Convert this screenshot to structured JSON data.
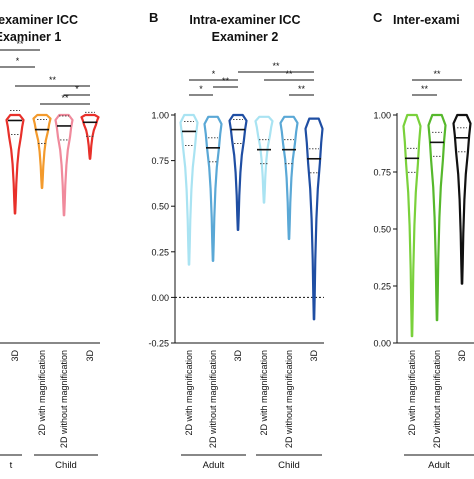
{
  "colors": {
    "adult_2d_mag_b": "#a9e3f2",
    "adult_2d_nomag_b": "#5aa8d6",
    "adult_3d_b": "#1f4ea3",
    "child_2d_mag_b": "#a9e3f2",
    "child_2d_nomag_b": "#5aa8d6",
    "child_3d_b": "#1f4ea3",
    "a_3d_adult": "#e8302a",
    "a_2d_mag_child": "#f39a2c",
    "a_2d_nomag_child": "#f08a9c",
    "a_3d_child": "#e8302a",
    "c_2d_mag": "#7ad13b",
    "c_2d_nomag": "#56b82c",
    "c_3d": "#111111"
  },
  "chart_data": [
    {
      "panel_letter": "",
      "title_lines": [
        "-examiner ICC",
        "Examiner 1"
      ],
      "type": "violin",
      "categories": [
        "3D",
        "2D with magnification",
        "2D without magnification",
        "3D"
      ],
      "groups": [
        {
          "label": "t",
          "start": 0,
          "end": 0
        },
        {
          "label": "Child",
          "start": 1,
          "end": 3
        }
      ],
      "medians": [
        0.97,
        0.92,
        0.94,
        0.96
      ],
      "mins": [
        0.46,
        0.6,
        0.45,
        0.76
      ],
      "maxs": [
        1.0,
        1.0,
        1.0,
        1.0
      ],
      "significance": [
        {
          "label": "**",
          "level": 0
        },
        {
          "label": "*",
          "level": 1
        },
        {
          "label": "**",
          "from": 1,
          "to": 3,
          "level": 2
        },
        {
          "label": "**",
          "from": 2,
          "to": 3,
          "level": 3
        },
        {
          "label": "*",
          "from": 2,
          "to": 3,
          "level": 4
        }
      ]
    },
    {
      "panel_letter": "B",
      "title_lines": [
        "Intra-examiner ICC",
        "Examiner 2"
      ],
      "type": "violin",
      "categories": [
        "2D with magnification",
        "2D without magnification",
        "3D",
        "2D with magnification",
        "2D without magnification",
        "3D"
      ],
      "groups": [
        {
          "label": "Adult",
          "start": 0,
          "end": 2
        },
        {
          "label": "Child",
          "start": 3,
          "end": 5
        }
      ],
      "ylim": [
        -0.25,
        1.0
      ],
      "yticks": [
        "1.00",
        "0.75",
        "0.50",
        "0.25",
        "0.00",
        "-0.25"
      ],
      "medians": [
        0.91,
        0.82,
        0.92,
        0.81,
        0.81,
        0.76
      ],
      "mins": [
        0.18,
        0.2,
        0.37,
        0.52,
        0.32,
        -0.12
      ],
      "maxs": [
        1.0,
        0.99,
        1.0,
        0.99,
        0.99,
        0.98
      ],
      "significance": [
        {
          "label": "*",
          "from": 0,
          "to": 2,
          "level": 3
        },
        {
          "label": "*",
          "from": 0,
          "to": 1,
          "level": 1
        },
        {
          "label": "**",
          "from": 1,
          "to": 2,
          "level": 2
        },
        {
          "label": "**",
          "from": 2,
          "to": 5,
          "level": 4
        },
        {
          "label": "**",
          "from": 3,
          "to": 5,
          "level": 3
        },
        {
          "label": "**",
          "from": 4,
          "to": 5,
          "level": 1
        }
      ]
    },
    {
      "panel_letter": "C",
      "title_lines": [
        "Inter-exami"
      ],
      "type": "violin",
      "categories": [
        "2D with magnification",
        "2D without magnification",
        "3D"
      ],
      "groups": [
        {
          "label": "Adult",
          "start": 0,
          "end": 2
        }
      ],
      "ylim": [
        0.0,
        1.0
      ],
      "yticks": [
        "1.00",
        "0.75",
        "0.50",
        "0.25",
        "0.00"
      ],
      "medians": [
        0.81,
        0.88,
        0.9
      ],
      "mins": [
        0.03,
        0.1,
        0.26
      ],
      "maxs": [
        1.0,
        1.0,
        1.0
      ],
      "significance": [
        {
          "label": "**",
          "from": 0,
          "to": 2,
          "level": 3
        },
        {
          "label": "**",
          "from": 0,
          "to": 1,
          "level": 1
        }
      ]
    }
  ]
}
